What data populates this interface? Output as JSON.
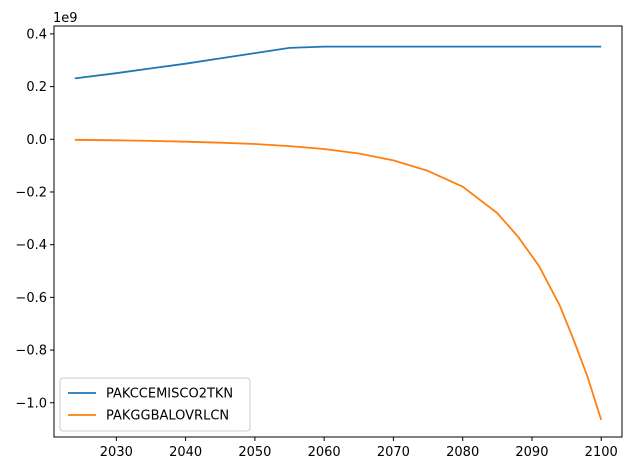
{
  "chart_data": {
    "type": "line",
    "title": "",
    "xlabel": "",
    "ylabel": "",
    "y_offset_label": "1e9",
    "xlim": [
      2021,
      2103
    ],
    "ylim": [
      -1.13,
      0.43
    ],
    "xticks": [
      2030,
      2040,
      2050,
      2060,
      2070,
      2080,
      2090,
      2100
    ],
    "yticks": [
      0.4,
      0.2,
      0.0,
      -0.2,
      -0.4,
      -0.6,
      -0.8,
      -1.0
    ],
    "legend_position": "lower-left",
    "grid": false,
    "x": [
      2024,
      2030,
      2035,
      2040,
      2045,
      2050,
      2055,
      2060,
      2065,
      2070,
      2075,
      2080,
      2085,
      2088,
      2091,
      2094,
      2096,
      2098,
      2100
    ],
    "series": [
      {
        "name": "PAKCCEMISCO2TKN",
        "color": "#1f77b4",
        "values": [
          0.231,
          0.251,
          0.269,
          0.287,
          0.307,
          0.327,
          0.347,
          0.352,
          0.352,
          0.352,
          0.352,
          0.352,
          0.352,
          0.352,
          0.352,
          0.352,
          0.352,
          0.352,
          0.352
        ]
      },
      {
        "name": "PAKGGBALOVRLCN",
        "color": "#ff7f0e",
        "values": [
          -0.002,
          -0.004,
          -0.006,
          -0.009,
          -0.013,
          -0.018,
          -0.026,
          -0.037,
          -0.054,
          -0.08,
          -0.12,
          -0.18,
          -0.28,
          -0.37,
          -0.48,
          -0.63,
          -0.76,
          -0.9,
          -1.065
        ]
      }
    ]
  }
}
